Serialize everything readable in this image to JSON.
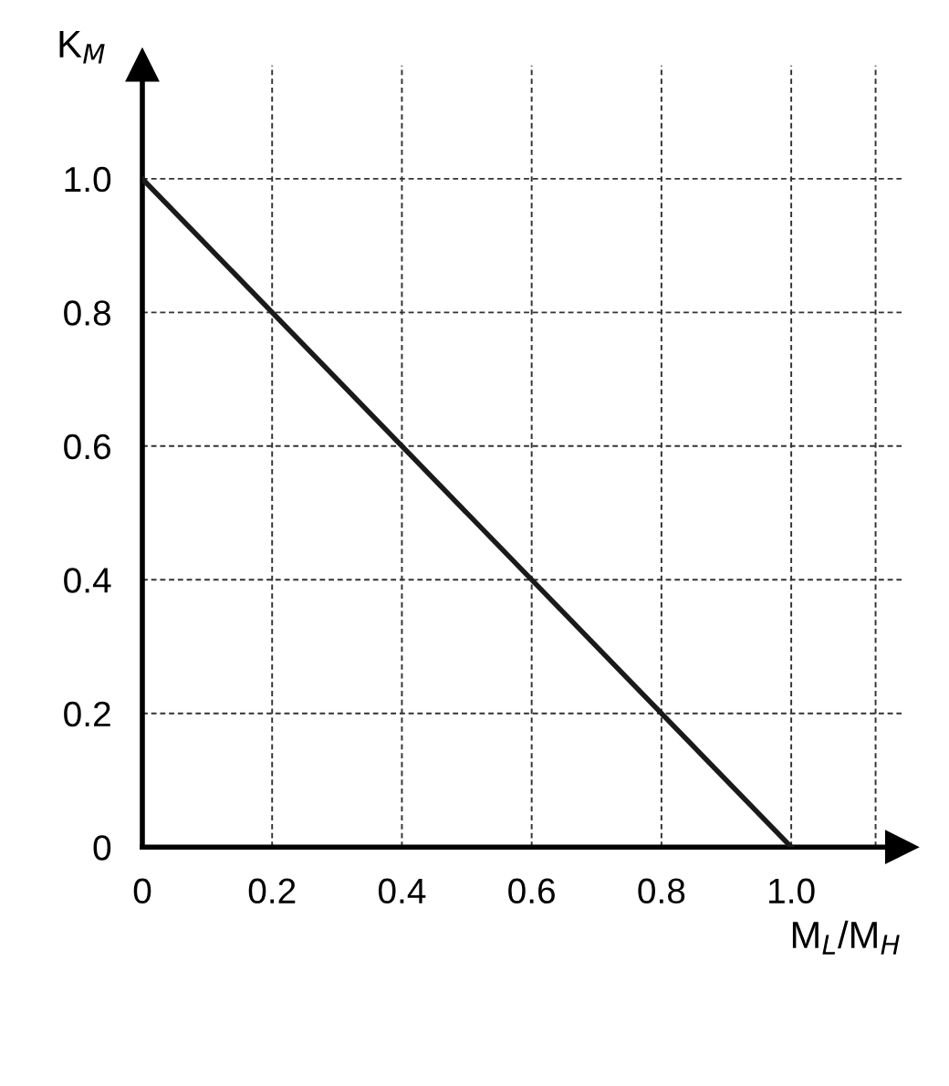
{
  "chart_data": {
    "type": "line",
    "xlabel": "M$_{L}$/M$_{H}$",
    "ylabel": "K$_{M}$",
    "x": [
      0,
      1.0
    ],
    "series": [
      {
        "color": "#1a1a1a",
        "values": [
          1.0,
          0
        ]
      }
    ],
    "xlim": [
      0,
      1.17
    ],
    "ylim": [
      0,
      1.17
    ],
    "xticks": [
      0,
      0.2,
      0.4,
      0.6,
      0.8,
      {
        "value": 1.0,
        "label": "1.0"
      },
      {
        "value": 1.13,
        "label": null
      }
    ],
    "yticks": [
      0,
      0.2,
      0.4,
      0.6,
      0.8,
      {
        "value": 1.0,
        "label": "1.0"
      }
    ],
    "grid": true,
    "marker": "none",
    "line_style": "solid"
  }
}
